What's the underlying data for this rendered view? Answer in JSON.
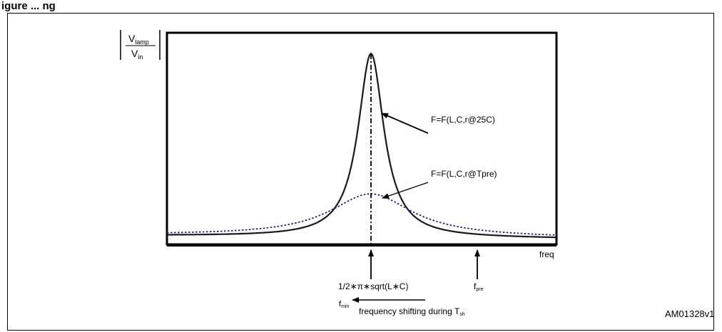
{
  "header": {
    "caption": "igure    ...      ng"
  },
  "yaxis": {
    "numerator": "V",
    "numerator_sub": "lamp",
    "denominator": "V",
    "denominator_sub": "in"
  },
  "xaxis": {
    "label": "freq"
  },
  "curves": [
    {
      "label": "F=F(L,C,r@25C)",
      "style": "solid",
      "color": "#1a1a1a"
    },
    {
      "label": "F=F(L,C,r@Tpre)",
      "style": "dotted",
      "color": "#1f1f8a"
    }
  ],
  "markers": {
    "resonance": {
      "text": "1/2∗π∗sqrt(L∗C)"
    },
    "fpre": {
      "main": "f",
      "sub": "pre"
    }
  },
  "shift": {
    "fmin_main": "f",
    "fmin_sub": "min",
    "text": "frequency shifting during T",
    "text_sub": "sh"
  },
  "reference": "AM01328v1"
}
